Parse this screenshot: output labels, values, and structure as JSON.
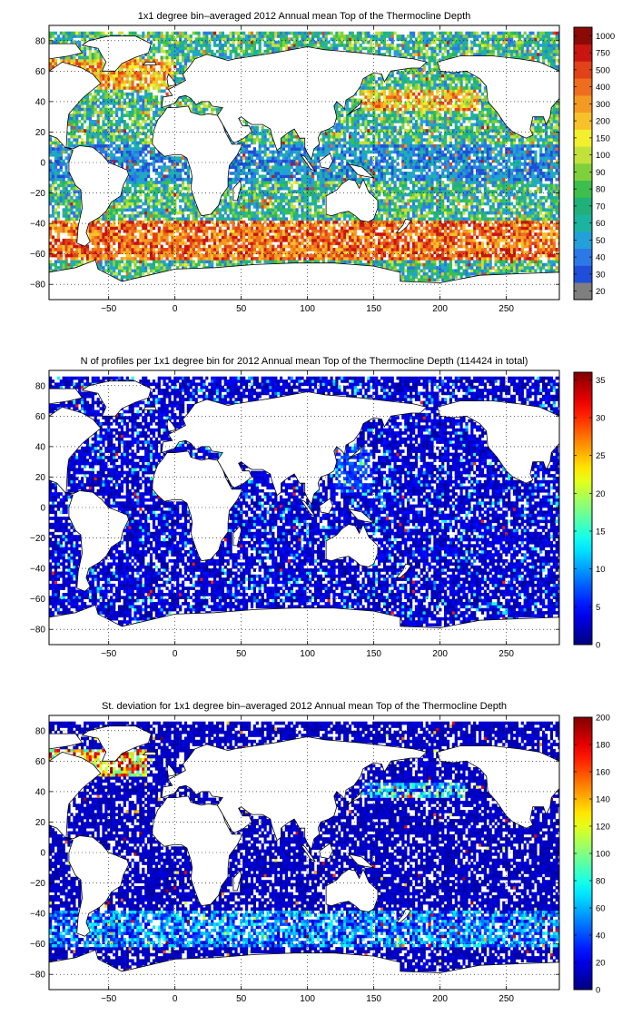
{
  "panels": [
    {
      "title": "1x1 degree bin–averaged 2012 Annual mean Top of the Thermocline Depth",
      "colorbar": {
        "type": "categorical",
        "labels": [
          "20",
          "30",
          "40",
          "50",
          "60",
          "70",
          "80",
          "90",
          "100",
          "150",
          "200",
          "300",
          "400",
          "500",
          "750",
          "1000"
        ],
        "colors": [
          "#7f7f7f",
          "#1f4fd8",
          "#2b79e6",
          "#23a0d9",
          "#1cb3a0",
          "#20b07a",
          "#3cbf4d",
          "#7fd13b",
          "#c2e23a",
          "#f2ef2f",
          "#f7c12a",
          "#f49a22",
          "#ee6e1d",
          "#e24218",
          "#c81510",
          "#8c0a05"
        ]
      },
      "chart_data": {
        "type": "heatmap",
        "title": "1x1 degree bin–averaged 2012 Annual mean Top of the Thermocline Depth",
        "xlabel": "",
        "ylabel": "",
        "xlim": [
          -95,
          290
        ],
        "ylim": [
          -90,
          90
        ],
        "xticks": [
          -50,
          0,
          50,
          100,
          150,
          200,
          250
        ],
        "yticks": [
          -80,
          -60,
          -40,
          -20,
          0,
          20,
          40,
          60,
          80
        ],
        "grid": true,
        "colorscale_labels": [
          "20",
          "30",
          "40",
          "50",
          "60",
          "70",
          "80",
          "90",
          "100",
          "150",
          "200",
          "300",
          "400",
          "500",
          "750",
          "1000"
        ]
      }
    },
    {
      "title": "N of profiles per 1x1 degree bin for 2012 Annual mean Top of the Thermocline Depth  (114424 in total)",
      "colorbar": {
        "type": "continuous",
        "ticks": [
          0,
          5,
          10,
          15,
          20,
          25,
          30,
          35
        ],
        "range": [
          0,
          36
        ]
      },
      "chart_data": {
        "type": "heatmap",
        "title": "N of profiles per 1x1 degree bin for 2012 Annual mean Top of the Thermocline Depth  (114424 in total)",
        "xlabel": "",
        "ylabel": "",
        "xlim": [
          -95,
          290
        ],
        "ylim": [
          -90,
          90
        ],
        "xticks": [
          -50,
          0,
          50,
          100,
          150,
          200,
          250
        ],
        "yticks": [
          -80,
          -60,
          -40,
          -20,
          0,
          20,
          40,
          60,
          80
        ],
        "grid": true,
        "colorscale_range": [
          0,
          36
        ],
        "colorscale_ticks": [
          0,
          5,
          10,
          15,
          20,
          25,
          30,
          35
        ]
      }
    },
    {
      "title": "St. deviation for 1x1 degree bin–averaged 2012 Annual mean Top of the Thermocline Depth",
      "colorbar": {
        "type": "continuous",
        "ticks": [
          0,
          20,
          40,
          60,
          80,
          100,
          120,
          140,
          160,
          180,
          200
        ],
        "range": [
          0,
          200
        ]
      },
      "chart_data": {
        "type": "heatmap",
        "title": "St. deviation for 1x1 degree bin–averaged 2012 Annual mean Top of the Thermocline Depth",
        "xlabel": "",
        "ylabel": "",
        "xlim": [
          -95,
          290
        ],
        "ylim": [
          -90,
          90
        ],
        "xticks": [
          -50,
          0,
          50,
          100,
          150,
          200,
          250
        ],
        "yticks": [
          -80,
          -60,
          -40,
          -20,
          0,
          20,
          40,
          60,
          80
        ],
        "grid": true,
        "colorscale_range": [
          0,
          200
        ],
        "colorscale_ticks": [
          0,
          20,
          40,
          60,
          80,
          100,
          120,
          140,
          160,
          180,
          200
        ]
      }
    }
  ]
}
